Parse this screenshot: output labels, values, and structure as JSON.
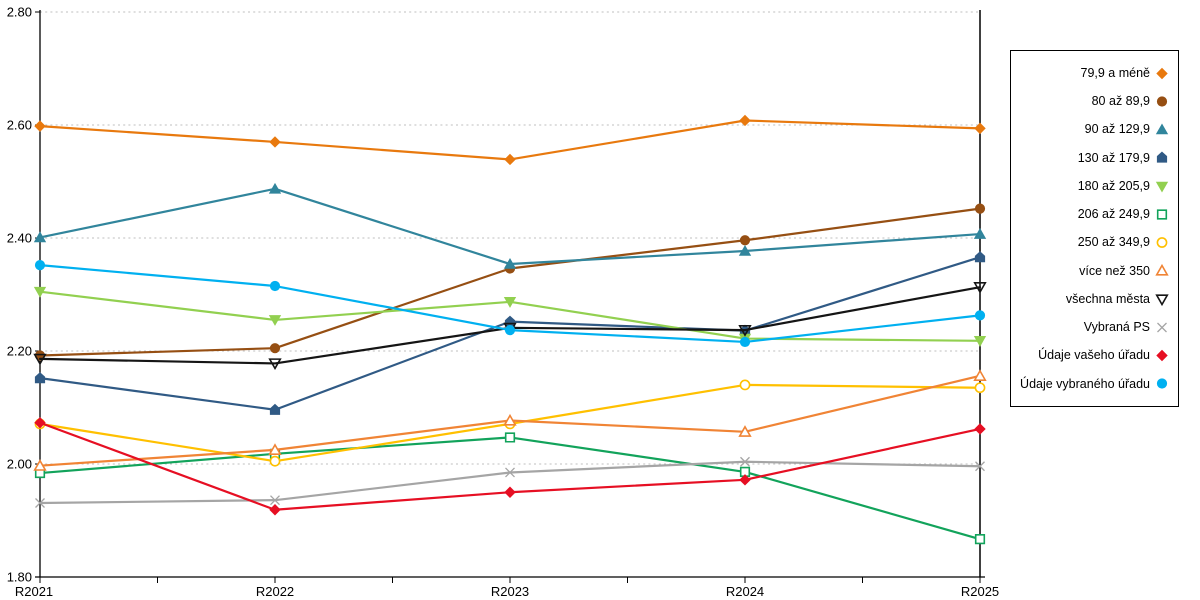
{
  "colors": {
    "background": "#FFFFFF",
    "gridline": "#BFBFBF",
    "axis": "#000000",
    "legend_border": "#000000"
  },
  "chart_data": {
    "type": "line",
    "title": "",
    "xlabel": "",
    "ylabel": "",
    "x_categories": [
      "R2021",
      "R2022",
      "R2023",
      "R2024",
      "R2025"
    ],
    "ylim": [
      1.8,
      2.8
    ],
    "y_ticks": [
      {
        "label": "2.80",
        "value": 2.8
      },
      {
        "label": "2.60",
        "value": 2.6
      },
      {
        "label": "2.40",
        "value": 2.4
      },
      {
        "label": "2.20",
        "value": 2.2
      },
      {
        "label": "2.00",
        "value": 2.0
      },
      {
        "label": "1.80",
        "value": 1.8
      }
    ],
    "grid": "horizontal dotted lines every 0.20",
    "legend_position": "right",
    "series": [
      {
        "name": "79,9 a méně",
        "color": "#E8790E",
        "marker": "diamond",
        "filled": true,
        "values": [
          2.598,
          2.57,
          2.539,
          2.608,
          2.594
        ]
      },
      {
        "name": "80 až 89,9",
        "color": "#964F13",
        "marker": "circle",
        "filled": true,
        "values": [
          2.192,
          2.205,
          2.346,
          2.396,
          2.452
        ]
      },
      {
        "name": "90 až 129,9",
        "color": "#31859C",
        "marker": "triangle-up",
        "filled": true,
        "values": [
          2.401,
          2.487,
          2.354,
          2.377,
          2.407
        ]
      },
      {
        "name": "130 až 179,9",
        "color": "#305A85",
        "marker": "pentagon",
        "filled": true,
        "values": [
          2.152,
          2.096,
          2.252,
          2.236,
          2.366
        ]
      },
      {
        "name": "180 až 205,9",
        "color": "#92D050",
        "marker": "triangle-down",
        "filled": true,
        "values": [
          2.305,
          2.255,
          2.287,
          2.222,
          2.218
        ]
      },
      {
        "name": "206 až 249,9",
        "color": "#12A35B",
        "marker": "square",
        "filled": false,
        "values": [
          1.984,
          2.018,
          2.047,
          1.986,
          1.867
        ]
      },
      {
        "name": "250 až 349,9",
        "color": "#FFC000",
        "marker": "circle",
        "filled": false,
        "values": [
          2.071,
          2.005,
          2.071,
          2.14,
          2.135
        ]
      },
      {
        "name": "více než 350",
        "color": "#F08435",
        "marker": "triangle-up",
        "filled": false,
        "values": [
          1.997,
          2.025,
          2.077,
          2.057,
          2.156
        ]
      },
      {
        "name": "všechna města",
        "color": "#151515",
        "marker": "triangle-down",
        "filled": false,
        "values": [
          2.186,
          2.178,
          2.241,
          2.237,
          2.313
        ]
      },
      {
        "name": "Vybraná PS",
        "color": "#A5A5A5",
        "marker": "x",
        "filled": false,
        "values": [
          1.931,
          1.936,
          1.985,
          2.004,
          1.996
        ]
      },
      {
        "name": "Údaje vašeho úřadu",
        "color": "#E60F23",
        "marker": "diamond",
        "filled": true,
        "values": [
          2.073,
          1.919,
          1.95,
          1.972,
          2.062
        ]
      },
      {
        "name": "Údaje vybraného úřadu",
        "color": "#00B0F0",
        "marker": "circle",
        "filled": true,
        "values": [
          2.352,
          2.315,
          2.237,
          2.216,
          2.263
        ]
      }
    ]
  }
}
